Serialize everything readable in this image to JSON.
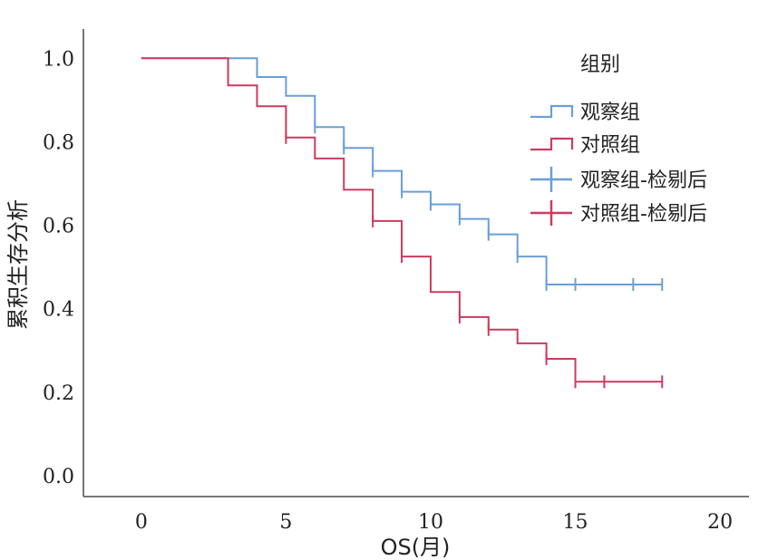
{
  "chart_data": {
    "type": "line",
    "subtype": "kaplan-meier",
    "xlabel": "OS(月)",
    "ylabel": "累积生存分析",
    "xlim": [
      -2,
      21
    ],
    "ylim": [
      -0.05,
      1.07
    ],
    "xticks": [
      0,
      5,
      10,
      15,
      20
    ],
    "xtick_labels": [
      "0",
      "5",
      "10",
      "15",
      "20"
    ],
    "yticks": [
      0.0,
      0.2,
      0.4,
      0.6,
      0.8,
      1.0
    ],
    "ytick_labels": [
      "0.0",
      "0.2",
      "0.4",
      "0.6",
      "0.8",
      "1.0"
    ],
    "legend_title": "组别",
    "legend_position": "top-right",
    "series": [
      {
        "name": "观察组",
        "censor_name": "观察组-检剔后",
        "color": "#6a9fd8",
        "steps": [
          [
            0,
            1.0
          ],
          [
            4,
            0.955
          ],
          [
            5,
            0.91
          ],
          [
            6,
            0.835
          ],
          [
            7,
            0.785
          ],
          [
            8,
            0.73
          ],
          [
            9,
            0.68
          ],
          [
            10,
            0.65
          ],
          [
            11,
            0.615
          ],
          [
            12,
            0.578
          ],
          [
            13,
            0.525
          ],
          [
            14,
            0.458
          ],
          [
            18,
            0.458
          ]
        ],
        "censored": [
          [
            6,
            0.835
          ],
          [
            7,
            0.785
          ],
          [
            8,
            0.73
          ],
          [
            9,
            0.68
          ],
          [
            10,
            0.65
          ],
          [
            11,
            0.615
          ],
          [
            12,
            0.578
          ],
          [
            13,
            0.525
          ],
          [
            14,
            0.458
          ],
          [
            15,
            0.458
          ],
          [
            17,
            0.458
          ],
          [
            18,
            0.458
          ]
        ]
      },
      {
        "name": "对照组",
        "censor_name": "对照组-检剔后",
        "color": "#cc3b5f",
        "steps": [
          [
            0,
            1.0
          ],
          [
            3,
            0.935
          ],
          [
            4,
            0.885
          ],
          [
            5,
            0.81
          ],
          [
            6,
            0.76
          ],
          [
            7,
            0.685
          ],
          [
            8,
            0.61
          ],
          [
            9,
            0.525
          ],
          [
            10,
            0.44
          ],
          [
            11,
            0.38
          ],
          [
            12,
            0.35
          ],
          [
            13,
            0.317
          ],
          [
            14,
            0.28
          ],
          [
            15,
            0.225
          ],
          [
            18,
            0.225
          ]
        ],
        "censored": [
          [
            5,
            0.81
          ],
          [
            8,
            0.61
          ],
          [
            9,
            0.525
          ],
          [
            11,
            0.38
          ],
          [
            12,
            0.35
          ],
          [
            14,
            0.28
          ],
          [
            15,
            0.225
          ],
          [
            16,
            0.225
          ],
          [
            18,
            0.225
          ]
        ]
      }
    ]
  }
}
